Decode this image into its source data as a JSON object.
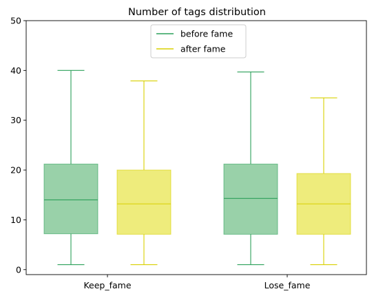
{
  "chart_data": {
    "type": "box",
    "title": "Number of tags distribution",
    "xlabel": "",
    "ylabel": "",
    "categories": [
      "Keep_fame",
      "Lose_fame"
    ],
    "ylim": [
      -1,
      50
    ],
    "yticks": [
      0,
      10,
      20,
      30,
      40,
      50
    ],
    "grid": false,
    "legend": {
      "placement": "top-center"
    },
    "series": [
      {
        "name": "before fame",
        "color": "#2ca05a",
        "fill": "#99d1a9",
        "boxes": [
          {
            "min": 1,
            "q1": 7.2,
            "median": 14,
            "q3": 21.2,
            "max": 40
          },
          {
            "min": 1,
            "q1": 7.1,
            "median": 14.3,
            "q3": 21.2,
            "max": 39.7
          }
        ]
      },
      {
        "name": "after fame",
        "color": "#d8d000",
        "fill": "#eeec7c",
        "boxes": [
          {
            "min": 1,
            "q1": 7.1,
            "median": 13.2,
            "q3": 20,
            "max": 37.9
          },
          {
            "min": 1,
            "q1": 7.1,
            "median": 13.2,
            "q3": 19.3,
            "max": 34.5
          }
        ]
      }
    ]
  }
}
